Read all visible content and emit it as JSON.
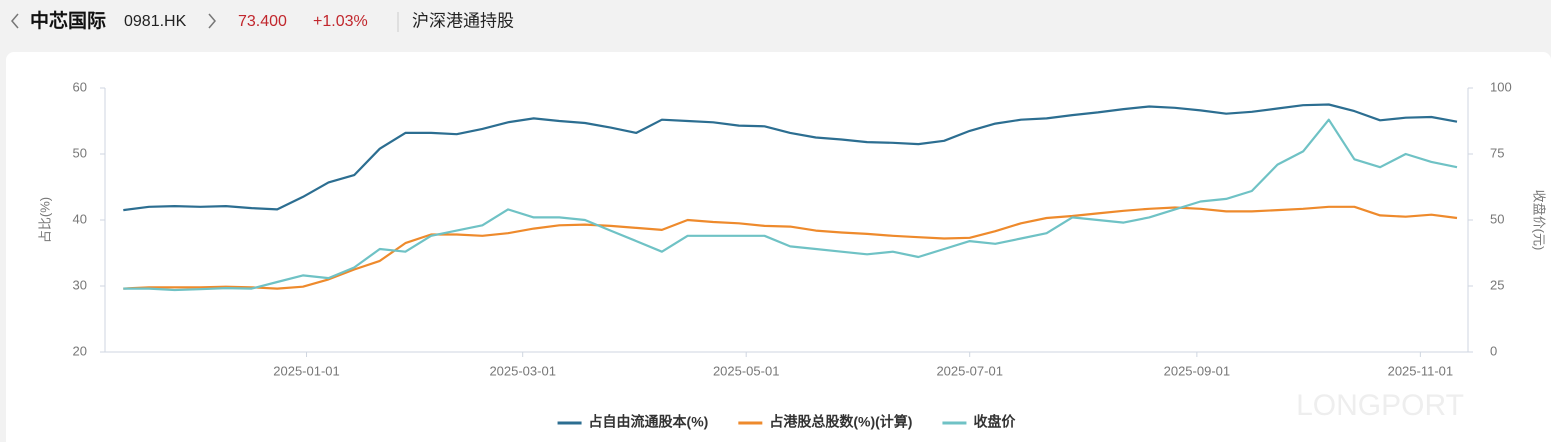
{
  "header": {
    "name": "中芯国际",
    "code": "0981.HK",
    "price": "73.400",
    "change": "+1.03%",
    "section": "沪深港通持股"
  },
  "watermark": "LONGPORT",
  "chart_data": {
    "type": "line",
    "ylabel": "占比(%)",
    "y2label": "收盘价(元)",
    "x": [
      "2024-11-12",
      "2024-11-19",
      "2024-11-26",
      "2024-12-03",
      "2024-12-10",
      "2024-12-17",
      "2024-12-24",
      "2024-12-31",
      "2025-01-07",
      "2025-01-14",
      "2025-01-21",
      "2025-01-28",
      "2025-02-04",
      "2025-02-11",
      "2025-02-18",
      "2025-02-25",
      "2025-03-04",
      "2025-03-11",
      "2025-03-18",
      "2025-03-25",
      "2025-04-01",
      "2025-04-08",
      "2025-04-15",
      "2025-04-22",
      "2025-04-29",
      "2025-05-06",
      "2025-05-13",
      "2025-05-20",
      "2025-05-27",
      "2025-06-03",
      "2025-06-10",
      "2025-06-17",
      "2025-06-24",
      "2025-07-01",
      "2025-07-08",
      "2025-07-15",
      "2025-07-22",
      "2025-07-29",
      "2025-08-05",
      "2025-08-12",
      "2025-08-19",
      "2025-08-26",
      "2025-09-02",
      "2025-09-09",
      "2025-09-16",
      "2025-09-23",
      "2025-09-30",
      "2025-10-07",
      "2025-10-14",
      "2025-10-21",
      "2025-10-28",
      "2025-11-04",
      "2025-11-11"
    ],
    "xlim": [
      "2024-11-07",
      "2025-11-14"
    ],
    "xticks": [
      "2025-01-01",
      "2025-03-01",
      "2025-05-01",
      "2025-07-01",
      "2025-09-01",
      "2025-11-01"
    ],
    "ylim": [
      20,
      60
    ],
    "yticks": [
      20,
      30,
      40,
      50,
      60
    ],
    "y2lim": [
      0,
      100
    ],
    "y2ticks": [
      0,
      25,
      50,
      75,
      100
    ],
    "grid": false,
    "legend": "bottom",
    "series": [
      {
        "name": "占自由流通股本(%)",
        "color": "#2c6e91",
        "values": [
          41.5,
          42.0,
          42.1,
          42.0,
          42.1,
          41.8,
          41.6,
          43.5,
          45.7,
          46.8,
          50.8,
          53.2,
          53.2,
          53.0,
          53.8,
          54.8,
          55.4,
          55.0,
          54.7,
          54.0,
          53.2,
          55.2,
          55.0,
          54.8,
          54.3,
          54.2,
          53.2,
          52.5,
          52.2,
          51.8,
          51.7,
          51.5,
          52.0,
          53.5,
          54.6,
          55.2,
          55.4,
          55.9,
          56.3,
          56.8,
          57.2,
          57.0,
          56.6,
          56.1,
          56.4,
          56.9,
          57.4,
          57.5,
          56.5,
          55.1,
          55.5,
          55.6,
          54.9
        ]
      },
      {
        "name": "占港股总股数(%)(计算)",
        "color": "#ee8a2c",
        "values": [
          29.6,
          29.8,
          29.8,
          29.8,
          29.9,
          29.8,
          29.6,
          29.9,
          31.0,
          32.5,
          33.8,
          36.5,
          37.8,
          37.8,
          37.6,
          38.0,
          38.7,
          39.2,
          39.3,
          39.1,
          38.8,
          38.5,
          40.0,
          39.7,
          39.5,
          39.1,
          39.0,
          38.4,
          38.1,
          37.9,
          37.6,
          37.4,
          37.2,
          37.3,
          38.3,
          39.5,
          40.3,
          40.6,
          41.0,
          41.4,
          41.7,
          41.9,
          41.7,
          41.3,
          41.3,
          41.5,
          41.7,
          42.0,
          42.0,
          40.7,
          40.5,
          40.8,
          40.3
        ]
      },
      {
        "name": "收盘价",
        "color": "#6fc2c5",
        "axis": "y2",
        "values": [
          24,
          24,
          23.5,
          23.8,
          24.2,
          24,
          26.5,
          29,
          28,
          32,
          39,
          38,
          44,
          46,
          48,
          54,
          51,
          51,
          50,
          46,
          42,
          38,
          44,
          44,
          44,
          44,
          40,
          39,
          38,
          37,
          38,
          36,
          39,
          42,
          41,
          43,
          45,
          51,
          50,
          49,
          51,
          54,
          57,
          58,
          61,
          71,
          76,
          88,
          73,
          70,
          75,
          72,
          70
        ]
      }
    ]
  }
}
